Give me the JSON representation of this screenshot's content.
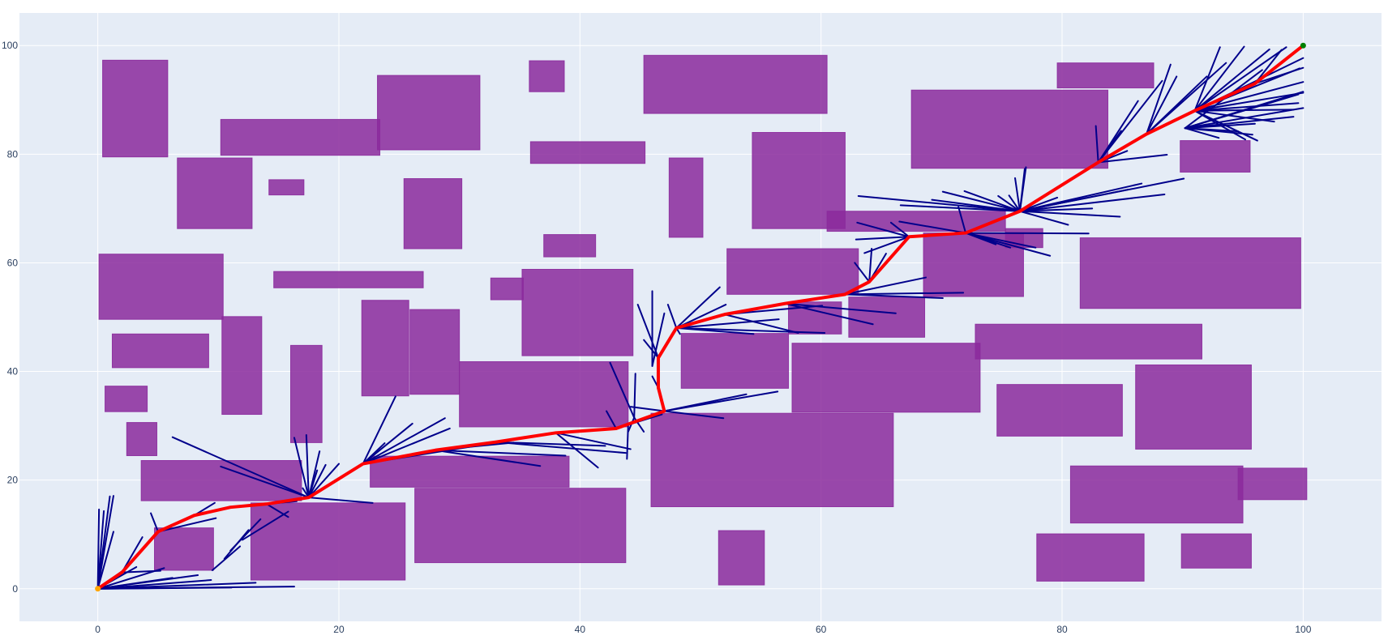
{
  "chart_data": {
    "type": "scatter",
    "title": "",
    "xlabel": "",
    "ylabel": "",
    "xlim": [
      -6.5,
      106.5
    ],
    "ylim": [
      -6,
      106
    ],
    "grid": true,
    "legend": "none",
    "x_ticks": [
      "0",
      "20",
      "40",
      "60",
      "80",
      "100"
    ],
    "y_ticks": [
      "0",
      "20",
      "40",
      "60",
      "80",
      "100"
    ],
    "x_tick_values": [
      0,
      20,
      40,
      60,
      80,
      100
    ],
    "y_tick_values": [
      0,
      20,
      40,
      60,
      80,
      100
    ],
    "colors": {
      "background": "#e5ecf6",
      "grid": "#ffffff",
      "obstacle": "#8b2a9c",
      "tree": "#00008b",
      "path": "#ff0000",
      "start": "#ffa500",
      "goal": "#008000"
    },
    "start": [
      0,
      0
    ],
    "goal": [
      100,
      100
    ],
    "obstacles": [
      [
        0.4,
        79.5,
        5.8,
        97.3
      ],
      [
        6.6,
        66.3,
        12.8,
        79.3
      ],
      [
        10.2,
        79.8,
        23.4,
        86.4
      ],
      [
        23.2,
        80.8,
        31.7,
        94.5
      ],
      [
        14.2,
        72.5,
        17.1,
        75.3
      ],
      [
        35.8,
        91.5,
        38.7,
        97.2
      ],
      [
        45.3,
        87.5,
        60.5,
        98.2
      ],
      [
        35.9,
        78.3,
        45.4,
        82.3
      ],
      [
        47.4,
        64.7,
        50.2,
        79.3
      ],
      [
        54.3,
        66.3,
        62.0,
        84.0
      ],
      [
        25.4,
        62.6,
        30.2,
        75.5
      ],
      [
        37.0,
        61.1,
        41.3,
        65.2
      ],
      [
        67.5,
        77.4,
        83.8,
        91.8
      ],
      [
        79.6,
        92.2,
        87.6,
        96.8
      ],
      [
        89.8,
        76.7,
        95.6,
        82.5
      ],
      [
        60.5,
        65.8,
        75.3,
        69.5
      ],
      [
        75.3,
        62.8,
        78.4,
        66.3
      ],
      [
        68.5,
        53.8,
        76.8,
        65.5
      ],
      [
        81.5,
        51.6,
        99.8,
        64.6
      ],
      [
        0.1,
        49.6,
        10.4,
        61.6
      ],
      [
        14.6,
        55.4,
        27.0,
        58.4
      ],
      [
        32.6,
        53.2,
        35.3,
        57.2
      ],
      [
        35.2,
        42.9,
        44.4,
        58.8
      ],
      [
        52.2,
        54.2,
        63.1,
        62.6
      ],
      [
        57.3,
        46.9,
        61.7,
        52.8
      ],
      [
        62.3,
        46.3,
        68.6,
        53.7
      ],
      [
        72.8,
        42.3,
        91.6,
        48.7
      ],
      [
        1.2,
        40.7,
        9.2,
        46.9
      ],
      [
        10.3,
        32.1,
        13.6,
        50.1
      ],
      [
        0.6,
        32.6,
        4.1,
        37.3
      ],
      [
        16.0,
        26.9,
        18.6,
        44.8
      ],
      [
        21.9,
        35.5,
        25.8,
        53.1
      ],
      [
        25.9,
        35.8,
        30.0,
        51.4
      ],
      [
        30.0,
        29.8,
        44.0,
        41.8
      ],
      [
        48.4,
        36.9,
        57.3,
        47.0
      ],
      [
        57.6,
        32.5,
        73.2,
        45.2
      ],
      [
        2.4,
        24.5,
        4.9,
        30.6
      ],
      [
        3.6,
        16.2,
        16.9,
        23.6
      ],
      [
        22.6,
        18.7,
        39.1,
        24.4
      ],
      [
        45.9,
        15.1,
        66.0,
        32.3
      ],
      [
        74.6,
        28.1,
        85.0,
        37.6
      ],
      [
        86.1,
        25.7,
        95.7,
        41.2
      ],
      [
        4.7,
        3.4,
        9.6,
        11.2
      ],
      [
        12.7,
        1.6,
        25.5,
        15.8
      ],
      [
        26.3,
        4.8,
        43.8,
        18.5
      ],
      [
        51.5,
        0.7,
        55.3,
        10.7
      ],
      [
        77.9,
        1.4,
        86.8,
        10.1
      ],
      [
        80.7,
        12.1,
        95.0,
        22.6
      ],
      [
        89.9,
        3.8,
        95.7,
        10.1
      ],
      [
        94.6,
        16.4,
        100.3,
        22.2
      ]
    ],
    "path": [
      [
        0,
        0
      ],
      [
        2,
        3
      ],
      [
        5,
        10.5
      ],
      [
        8,
        13.5
      ],
      [
        11,
        15
      ],
      [
        14,
        15.6
      ],
      [
        17.5,
        16.8
      ],
      [
        22,
        23
      ],
      [
        28,
        25.5
      ],
      [
        33,
        27
      ],
      [
        38,
        28.7
      ],
      [
        43,
        29.5
      ],
      [
        47,
        32.7
      ],
      [
        46.5,
        37
      ],
      [
        46.5,
        42.5
      ],
      [
        48,
        48
      ],
      [
        52,
        50.5
      ],
      [
        57,
        52.5
      ],
      [
        62,
        54.2
      ],
      [
        64,
        56.5
      ],
      [
        67.3,
        64.8
      ],
      [
        72,
        65.5
      ],
      [
        76.5,
        69.5
      ],
      [
        83,
        78.5
      ],
      [
        87,
        83.7
      ],
      [
        91,
        88
      ],
      [
        96,
        93
      ],
      [
        100,
        100
      ]
    ],
    "tree_edges": [
      [
        0,
        0,
        0.1,
        14.6
      ],
      [
        0,
        0,
        0.5,
        14.3
      ],
      [
        0,
        0,
        1.0,
        17.0
      ],
      [
        0,
        0,
        1.3,
        17.1
      ],
      [
        0,
        0,
        1.3,
        10.5
      ],
      [
        0,
        0,
        2.0,
        3.2
      ],
      [
        0,
        0,
        3.2,
        4.0
      ],
      [
        0,
        0,
        5.5,
        3.8
      ],
      [
        0,
        0,
        6.2,
        2.0
      ],
      [
        0,
        0,
        8.3,
        2.5
      ],
      [
        0,
        0,
        9.4,
        1.6
      ],
      [
        0,
        0,
        13.1,
        1.1
      ],
      [
        0,
        0,
        16.3,
        0.4
      ],
      [
        0,
        0,
        11.1,
        0.2
      ],
      [
        2,
        3,
        5.2,
        3.3
      ],
      [
        2,
        3,
        3.7,
        9.5
      ],
      [
        5,
        10.5,
        4.4,
        13.9
      ],
      [
        5,
        10.5,
        9.8,
        13.0
      ],
      [
        8,
        13.5,
        9.7,
        15.8
      ],
      [
        11,
        15,
        16.5,
        16.1
      ],
      [
        14,
        15.6,
        15.8,
        13.2
      ],
      [
        9.5,
        3.4,
        11.8,
        7.8
      ],
      [
        10.5,
        5.5,
        12.5,
        10.8
      ],
      [
        11,
        7,
        13.5,
        12.8
      ],
      [
        12,
        9,
        15.8,
        14.2
      ],
      [
        17.5,
        16.8,
        17.0,
        18.5
      ],
      [
        17.5,
        16.8,
        22.8,
        15.8
      ],
      [
        17.5,
        16.8,
        16.3,
        27.8
      ],
      [
        17.5,
        16.8,
        17.3,
        28.3
      ],
      [
        17.5,
        16.8,
        18.2,
        21.8
      ],
      [
        17.5,
        16.8,
        20.0,
        23.0
      ],
      [
        17.5,
        16.8,
        10.2,
        22.5
      ],
      [
        17.5,
        16.8,
        6.2,
        27.9
      ],
      [
        17.5,
        16.8,
        18.9,
        22.8
      ],
      [
        17.5,
        16.8,
        18.4,
        25.3
      ],
      [
        22,
        23,
        24.7,
        35.4
      ],
      [
        22,
        23,
        26.1,
        30.4
      ],
      [
        22,
        23,
        29.2,
        29.5
      ],
      [
        22,
        23,
        28.8,
        31.4
      ],
      [
        22,
        23,
        32.8,
        26.8
      ],
      [
        22,
        23,
        23.8,
        26.8
      ],
      [
        28,
        25.5,
        34.5,
        26.9
      ],
      [
        28,
        25.5,
        38.8,
        24.5
      ],
      [
        28,
        25.5,
        36.7,
        22.6
      ],
      [
        33,
        27,
        43.8,
        25.0
      ],
      [
        33,
        27,
        42.1,
        26.3
      ],
      [
        38,
        28.7,
        44.2,
        25.7
      ],
      [
        38,
        28.7,
        41.5,
        22.3
      ],
      [
        43,
        29.5,
        42.2,
        32.7
      ],
      [
        43,
        29.5,
        46.8,
        32.1
      ],
      [
        47,
        32.7,
        44.2,
        33.5
      ],
      [
        47,
        32.7,
        53.8,
        35.8
      ],
      [
        47,
        32.7,
        56.4,
        36.3
      ],
      [
        47,
        32.7,
        51.9,
        31.4
      ],
      [
        44.5,
        31.5,
        44.0,
        28.9
      ],
      [
        44.5,
        31.5,
        45.3,
        28.9
      ],
      [
        44.5,
        31.5,
        44.6,
        39.6
      ],
      [
        44.5,
        31.5,
        42.5,
        41.6
      ],
      [
        44,
        30,
        43.9,
        23.9
      ],
      [
        46.5,
        37,
        46.0,
        39.1
      ],
      [
        46.5,
        42.5,
        45.3,
        45.8
      ],
      [
        46.5,
        42.5,
        44.8,
        52.3
      ],
      [
        46,
        41,
        46.0,
        54.8
      ],
      [
        46,
        41,
        47.0,
        50.7
      ],
      [
        48,
        48,
        47.3,
        52.3
      ],
      [
        48,
        48,
        48.3,
        46.9
      ],
      [
        48,
        48,
        51.6,
        55.5
      ],
      [
        48,
        48,
        52.1,
        52.3
      ],
      [
        48,
        48,
        56.5,
        49.6
      ],
      [
        48,
        48,
        54.4,
        46.9
      ],
      [
        48,
        48,
        60.3,
        47.1
      ],
      [
        52,
        50.5,
        58.1,
        47.1
      ],
      [
        52,
        50.5,
        60.1,
        52.1
      ],
      [
        57,
        52.5,
        64.3,
        48.7
      ],
      [
        57,
        52.5,
        66.2,
        50.7
      ],
      [
        62,
        54.2,
        68.7,
        57.3
      ],
      [
        62,
        54.2,
        70.1,
        53.5
      ],
      [
        62,
        54.2,
        71.8,
        54.5
      ],
      [
        64,
        56.5,
        64.2,
        62.6
      ],
      [
        64,
        56.5,
        65.4,
        61.7
      ],
      [
        64,
        56.5,
        62.8,
        60.0
      ],
      [
        67.3,
        64.8,
        66.3,
        62.3
      ],
      [
        67.3,
        64.8,
        63.6,
        61.8
      ],
      [
        67.3,
        64.8,
        63.0,
        67.4
      ],
      [
        67.3,
        64.8,
        65.8,
        67.4
      ],
      [
        67.3,
        64.8,
        62.9,
        64.3
      ],
      [
        72,
        65.5,
        75.7,
        62.8
      ],
      [
        72,
        65.5,
        77.8,
        62.8
      ],
      [
        72,
        65.5,
        74.5,
        63.4
      ],
      [
        72,
        65.5,
        79.0,
        61.3
      ],
      [
        72,
        65.5,
        82.2,
        65.4
      ],
      [
        72,
        65.5,
        71.4,
        70.3
      ],
      [
        72,
        65.5,
        66.5,
        67.6
      ],
      [
        76.5,
        69.5,
        63.1,
        72.3
      ],
      [
        76.5,
        69.5,
        69.2,
        71.6
      ],
      [
        76.5,
        69.5,
        66.6,
        70.6
      ],
      [
        76.5,
        69.5,
        70.1,
        73.1
      ],
      [
        76.5,
        69.5,
        75.6,
        72.4
      ],
      [
        76.5,
        69.5,
        76.1,
        75.6
      ],
      [
        76.5,
        69.5,
        76.9,
        77.3
      ],
      [
        76.5,
        69.5,
        77.0,
        77.6
      ],
      [
        76.5,
        69.5,
        79.6,
        72.0
      ],
      [
        76.5,
        69.5,
        86.6,
        74.6
      ],
      [
        76.5,
        69.5,
        85.5,
        73.5
      ],
      [
        76.5,
        69.5,
        88.5,
        72.6
      ],
      [
        76.5,
        69.5,
        90.1,
        75.5
      ],
      [
        76.5,
        69.5,
        82.5,
        70.0
      ],
      [
        76.5,
        69.5,
        80.5,
        67.0
      ],
      [
        76.5,
        69.5,
        84.8,
        68.5
      ],
      [
        76.5,
        69.5,
        74.7,
        72.3
      ],
      [
        76.5,
        69.5,
        71.9,
        73.2
      ],
      [
        83,
        78.5,
        88.7,
        79.9
      ],
      [
        83,
        78.5,
        85.4,
        80.6
      ],
      [
        83,
        78.5,
        82.8,
        85.2
      ],
      [
        83,
        78.5,
        86.3,
        89.8
      ],
      [
        83,
        78.5,
        88.3,
        93.5
      ],
      [
        83,
        78.5,
        84.9,
        84.3
      ],
      [
        87,
        83.7,
        89.5,
        94.3
      ],
      [
        87,
        83.7,
        89.0,
        96.5
      ],
      [
        87,
        83.7,
        92.0,
        94.3
      ],
      [
        87,
        83.7,
        93.6,
        96.8
      ],
      [
        91,
        88,
        93.1,
        99.7
      ],
      [
        91,
        88,
        95.1,
        99.8
      ],
      [
        91,
        88,
        97.2,
        99.3
      ],
      [
        91,
        88,
        98.6,
        99.7
      ],
      [
        91,
        88,
        99.7,
        95.8
      ],
      [
        91,
        88,
        100,
        97.7
      ],
      [
        91,
        88,
        100,
        93.3
      ],
      [
        91,
        88,
        99.6,
        89.4
      ],
      [
        91,
        88,
        99.2,
        88.2
      ],
      [
        91,
        88,
        97.6,
        86.0
      ],
      [
        91,
        88,
        100,
        91.3
      ],
      [
        91,
        88,
        96.2,
        82.5
      ],
      [
        91,
        88,
        95.2,
        82.7
      ],
      [
        90.2,
        84.8,
        94.6,
        84.2
      ],
      [
        90.2,
        84.8,
        96.0,
        85.6
      ],
      [
        90.2,
        84.8,
        95.8,
        83.6
      ],
      [
        90.2,
        84.8,
        99.6,
        91.0
      ],
      [
        90.2,
        84.8,
        100,
        91.5
      ],
      [
        90.2,
        84.8,
        98.8,
        90.5
      ],
      [
        90.2,
        84.8,
        99.2,
        86.9
      ],
      [
        90.2,
        84.8,
        100,
        88.5
      ],
      [
        90.2,
        84.8,
        96.6,
        95.5
      ],
      [
        90.2,
        84.8,
        93.0,
        83.0
      ],
      [
        96,
        93,
        100,
        95.9
      ],
      [
        96,
        93,
        98.2,
        99.2
      ]
    ]
  }
}
